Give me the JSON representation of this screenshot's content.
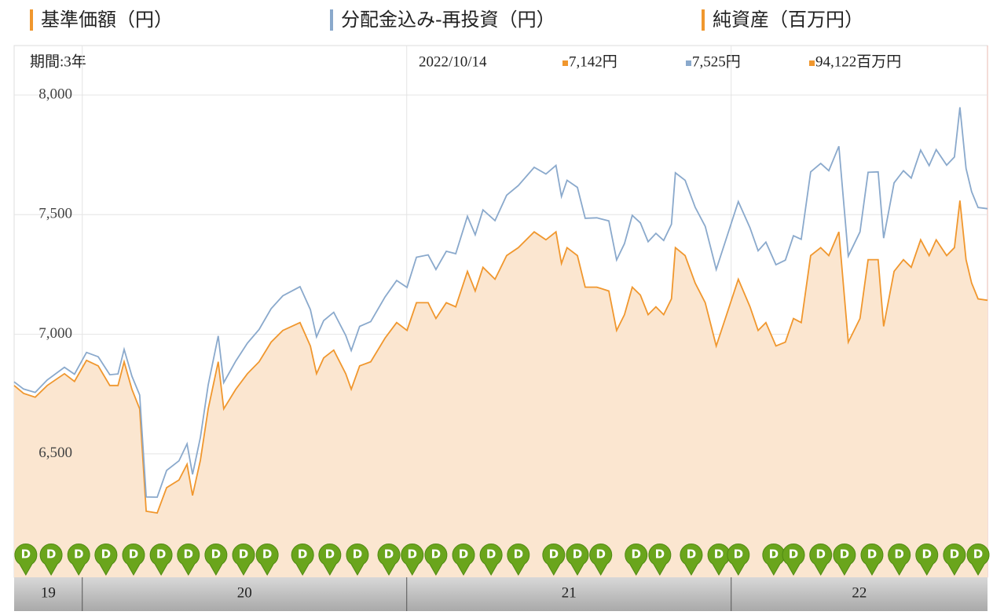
{
  "chart_data": {
    "type": "line",
    "legend_extra": {
      "name": "純資産（百万円）",
      "color": "#f0972e"
    },
    "readout": {
      "period": "期間:3年",
      "date": "2022/10/14",
      "values": [
        "7,142円",
        "7,525円",
        "94,122百万円"
      ],
      "colors": [
        "#f0972e",
        "#8aa9cc",
        "#f0972e"
      ]
    },
    "x": [
      2019.79,
      2019.819,
      2019.855,
      2019.892,
      2019.945,
      2019.976,
      2020.013,
      2020.049,
      2020.085,
      2020.11,
      2020.129,
      2020.153,
      2020.177,
      2020.197,
      2020.231,
      2020.26,
      2020.298,
      2020.323,
      2020.34,
      2020.364,
      2020.388,
      2020.419,
      2020.436,
      2020.473,
      2020.509,
      2020.545,
      2020.582,
      2020.618,
      2020.671,
      2020.703,
      2020.722,
      2020.744,
      2020.775,
      2020.812,
      2020.829,
      2020.855,
      2020.889,
      2020.933,
      2020.969,
      2021.001,
      2021.03,
      2021.066,
      2021.09,
      2021.122,
      2021.151,
      2021.187,
      2021.211,
      2021.235,
      2021.272,
      2021.308,
      2021.344,
      2021.393,
      2021.429,
      2021.46,
      2021.477,
      2021.494,
      2021.526,
      2021.55,
      2021.586,
      2021.623,
      2021.647,
      2021.671,
      2021.695,
      2021.72,
      2021.744,
      2021.768,
      2021.792,
      2021.816,
      2021.828,
      2021.858,
      2021.889,
      2021.92,
      2021.954,
      2021.986,
      2022.022,
      2022.058,
      2022.083,
      2022.107,
      2022.138,
      2022.167,
      2022.192,
      2022.216,
      2022.245,
      2022.276,
      2022.301,
      2022.332,
      2022.361,
      2022.397,
      2022.422,
      2022.453,
      2022.47,
      2022.502,
      2022.531,
      2022.555,
      2022.584,
      2022.61,
      2022.632,
      2022.664,
      2022.688,
      2022.705,
      2022.724,
      2022.741,
      2022.761,
      2022.79
    ],
    "series": [
      {
        "name": "基準価額（円）",
        "color": "#f0972e",
        "fill": "#fbe6d0",
        "values": [
          6786,
          6753,
          6737,
          6786,
          6835,
          6803,
          6891,
          6868,
          6786,
          6786,
          6885,
          6770,
          6688,
          6260,
          6253,
          6359,
          6391,
          6457,
          6326,
          6474,
          6688,
          6885,
          6688,
          6770,
          6835,
          6885,
          6967,
          7016,
          7049,
          6951,
          6835,
          6901,
          6934,
          6835,
          6770,
          6868,
          6885,
          6984,
          7049,
          7016,
          7132,
          7132,
          7066,
          7132,
          7115,
          7263,
          7181,
          7280,
          7230,
          7329,
          7362,
          7428,
          7395,
          7428,
          7296,
          7362,
          7329,
          7197,
          7197,
          7181,
          7016,
          7082,
          7197,
          7164,
          7082,
          7115,
          7082,
          7148,
          7362,
          7329,
          7214,
          7132,
          6951,
          7082,
          7230,
          7115,
          7016,
          7049,
          6951,
          6967,
          7066,
          7049,
          7329,
          7362,
          7329,
          7428,
          6967,
          7066,
          7312,
          7312,
          7033,
          7263,
          7312,
          7280,
          7395,
          7329,
          7395,
          7329,
          7362,
          7559,
          7312,
          7214,
          7148,
          7142
        ]
      },
      {
        "name": "分配金込み-再投資（円）",
        "color": "#8aa9cc",
        "values": [
          6801,
          6771,
          6757,
          6809,
          6862,
          6833,
          6924,
          6906,
          6831,
          6834,
          6937,
          6825,
          6746,
          6320,
          6319,
          6431,
          6471,
          6542,
          6414,
          6569,
          6788,
          6993,
          6798,
          6888,
          6963,
          7020,
          7107,
          7161,
          7199,
          7103,
          6989,
          7057,
          7092,
          6995,
          6932,
          7033,
          7053,
          7156,
          7225,
          7196,
          7322,
          7332,
          7271,
          7347,
          7337,
          7493,
          7416,
          7520,
          7475,
          7581,
          7622,
          7698,
          7670,
          7706,
          7576,
          7644,
          7614,
          7485,
          7487,
          7474,
          7311,
          7379,
          7497,
          7466,
          7387,
          7422,
          7392,
          7460,
          7675,
          7644,
          7531,
          7451,
          7271,
          7404,
          7555,
          7445,
          7349,
          7385,
          7291,
          7310,
          7412,
          7397,
          7679,
          7714,
          7684,
          7786,
          7327,
          7428,
          7677,
          7679,
          7402,
          7633,
          7684,
          7653,
          7770,
          7705,
          7772,
          7707,
          7741,
          7949,
          7693,
          7596,
          7530,
          7525
        ]
      }
    ],
    "xlim": [
      2019.79,
      2022.79
    ],
    "xticks": [
      2020,
      2021,
      2022
    ],
    "year_labels": [
      "19",
      "20",
      "21",
      "22"
    ],
    "ylim": [
      5984,
      8207
    ],
    "yticks": [
      {
        "value": 6500,
        "label": "6,500"
      },
      {
        "value": 7000,
        "label": "7,000"
      },
      {
        "value": 7500,
        "label": "7,500"
      },
      {
        "value": 8000,
        "label": "8,000"
      }
    ],
    "grid": true,
    "distribution_label": "D",
    "distribution_color": "#6aa51c",
    "distributions": [
      2019.826,
      2019.904,
      2019.989,
      2020.073,
      2020.158,
      2020.243,
      2020.327,
      2020.412,
      2020.497,
      2020.57,
      2020.679,
      2020.763,
      2020.848,
      2020.945,
      2021.017,
      2021.09,
      2021.175,
      2021.26,
      2021.344,
      2021.453,
      2021.526,
      2021.598,
      2021.707,
      2021.78,
      2021.877,
      2021.962,
      2022.022,
      2022.131,
      2022.192,
      2022.276,
      2022.349,
      2022.434,
      2022.518,
      2022.603,
      2022.688,
      2022.761
    ]
  }
}
